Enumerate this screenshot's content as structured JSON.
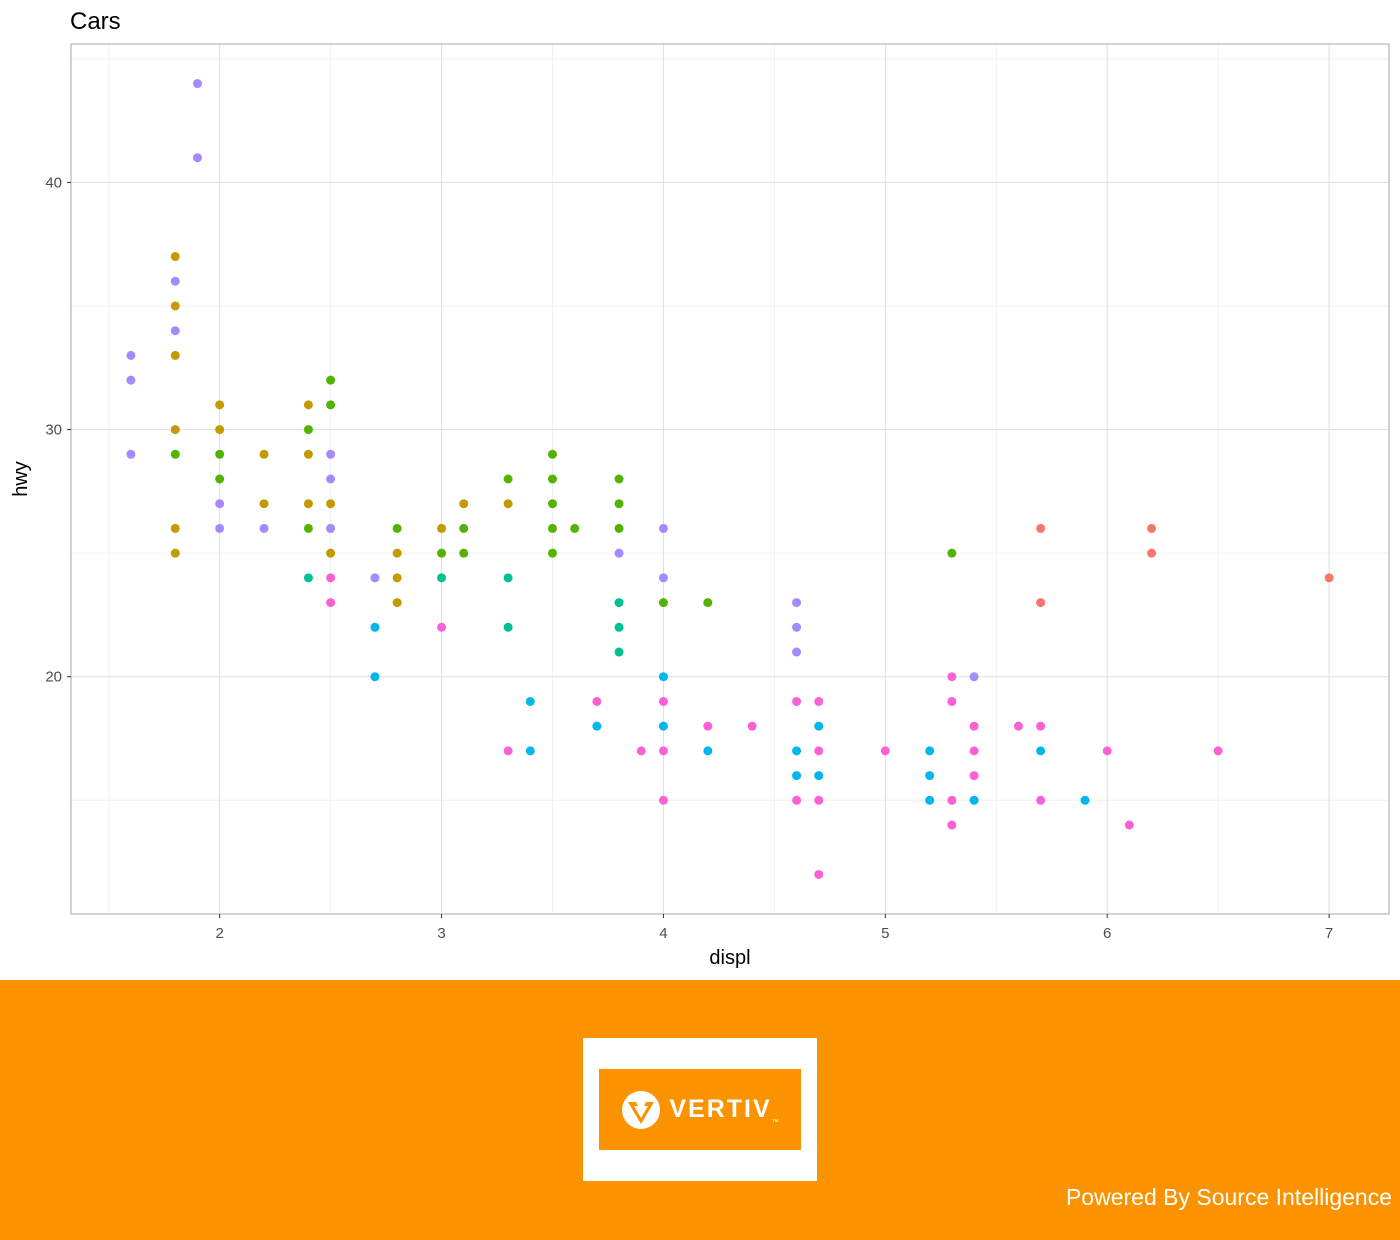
{
  "chart_data": {
    "type": "scatter",
    "title": "Cars",
    "xlabel": "displ",
    "ylabel": "hwy",
    "xlim": [
      1.33,
      7.27
    ],
    "ylim": [
      10.4,
      45.6
    ],
    "x_ticks": [
      2,
      3,
      4,
      5,
      6,
      7
    ],
    "y_ticks": [
      20,
      30,
      40
    ],
    "grid": true,
    "legend": "none",
    "series": [
      {
        "color": "#f8766d",
        "x": [
          5.7,
          5.7,
          6.2,
          6.2,
          7.0
        ],
        "y": [
          26,
          23,
          26,
          25,
          24
        ]
      },
      {
        "color": "#c49a00",
        "x": [
          1.8,
          1.8,
          1.8,
          1.8,
          1.8,
          1.8,
          2.0,
          2.0,
          2.2,
          2.2,
          2.4,
          2.4,
          2.4,
          2.5,
          2.5,
          2.5,
          2.8,
          2.8,
          2.8,
          3.0,
          3.1,
          3.3
        ],
        "y": [
          37,
          35,
          33,
          30,
          26,
          25,
          31,
          30,
          29,
          27,
          31,
          29,
          27,
          27,
          26,
          25,
          25,
          24,
          23,
          26,
          27,
          27
        ]
      },
      {
        "color": "#53b400",
        "x": [
          1.8,
          2.0,
          2.0,
          2.4,
          2.4,
          2.5,
          2.5,
          2.8,
          3.0,
          3.1,
          3.1,
          3.3,
          3.5,
          3.5,
          3.5,
          3.5,
          3.5,
          3.6,
          3.8,
          3.8,
          3.8,
          4.0,
          4.2,
          5.3
        ],
        "y": [
          29,
          29,
          28,
          30,
          26,
          32,
          31,
          26,
          25,
          26,
          25,
          28,
          29,
          28,
          27,
          26,
          25,
          26,
          28,
          27,
          26,
          23,
          23,
          25
        ]
      },
      {
        "color": "#00c094",
        "x": [
          2.4,
          3.0,
          3.3,
          3.3,
          3.8,
          3.8,
          3.8
        ],
        "y": [
          24,
          24,
          24,
          22,
          23,
          22,
          21
        ]
      },
      {
        "color": "#00b6eb",
        "x": [
          2.7,
          2.7,
          3.4,
          3.4,
          3.7,
          4.0,
          4.0,
          4.2,
          4.6,
          4.6,
          4.7,
          4.7,
          5.2,
          5.2,
          5.2,
          5.4,
          5.7,
          5.9
        ],
        "y": [
          22,
          20,
          19,
          17,
          18,
          20,
          18,
          17,
          17,
          16,
          18,
          16,
          17,
          16,
          15,
          15,
          17,
          15
        ]
      },
      {
        "color": "#a58aff",
        "x": [
          1.6,
          1.6,
          1.6,
          1.8,
          1.8,
          1.9,
          1.9,
          2.0,
          2.0,
          2.2,
          2.5,
          2.5,
          2.5,
          2.7,
          3.8,
          4.0,
          4.0,
          4.6,
          4.6,
          4.6,
          5.4
        ],
        "y": [
          33,
          32,
          29,
          36,
          34,
          44,
          41,
          27,
          26,
          26,
          29,
          28,
          26,
          24,
          25,
          26,
          24,
          23,
          22,
          21,
          20
        ]
      },
      {
        "color": "#fb61d7",
        "x": [
          2.5,
          2.5,
          3.0,
          3.3,
          3.7,
          3.9,
          4.0,
          4.0,
          4.0,
          4.2,
          4.4,
          4.6,
          4.6,
          4.7,
          4.7,
          4.7,
          4.7,
          5.0,
          5.3,
          5.3,
          5.3,
          5.3,
          5.4,
          5.4,
          5.4,
          5.6,
          5.7,
          5.7,
          6.0,
          6.1,
          6.5
        ],
        "y": [
          24,
          23,
          22,
          17,
          19,
          17,
          19,
          17,
          15,
          18,
          18,
          19,
          15,
          19,
          17,
          15,
          12,
          17,
          20,
          19,
          15,
          14,
          18,
          17,
          16,
          18,
          18,
          15,
          17,
          14,
          17
        ]
      }
    ]
  },
  "footer": {
    "logo_text": "VERTIV",
    "logo_tm": "™",
    "powered_by": "Powered By Source Intelligence"
  }
}
